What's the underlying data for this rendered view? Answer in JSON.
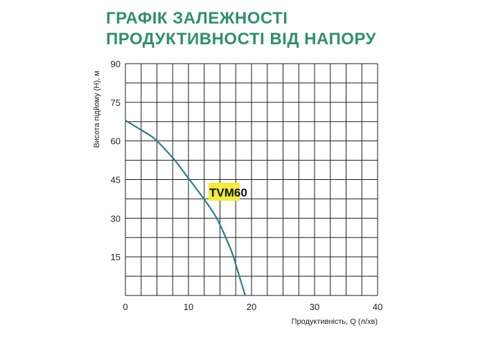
{
  "colors": {
    "title": "#2e8f6e",
    "grid": "#1a1a1a",
    "curve": "#2a7f86",
    "label_highlight": "#f3ec3a"
  },
  "chart_data": {
    "type": "line",
    "title": [
      "ГРАФІК ЗАЛЕЖНОСТІ",
      "ПРОДУКТИВНОСТІ ВІД НАПОРУ"
    ],
    "xlabel": "Продуктивність, Q (л/хв)",
    "ylabel": "Висота підйому (Н), м",
    "xlim": [
      0,
      40
    ],
    "ylim": [
      0,
      90
    ],
    "xticks": [
      0,
      10,
      20,
      30,
      40
    ],
    "yticks": [
      15,
      30,
      45,
      60,
      75,
      90
    ],
    "x_grid_step": 2.5,
    "y_grid_step": 7.5,
    "grid": true,
    "series": [
      {
        "name": "TVM60",
        "x": [
          0,
          2,
          4,
          5,
          6,
          8,
          10,
          12,
          14,
          15,
          16,
          17,
          18,
          19
        ],
        "y": [
          68,
          65,
          62,
          60,
          57.5,
          52,
          45.5,
          39,
          32,
          27.5,
          22,
          16,
          8,
          0
        ]
      }
    ]
  }
}
